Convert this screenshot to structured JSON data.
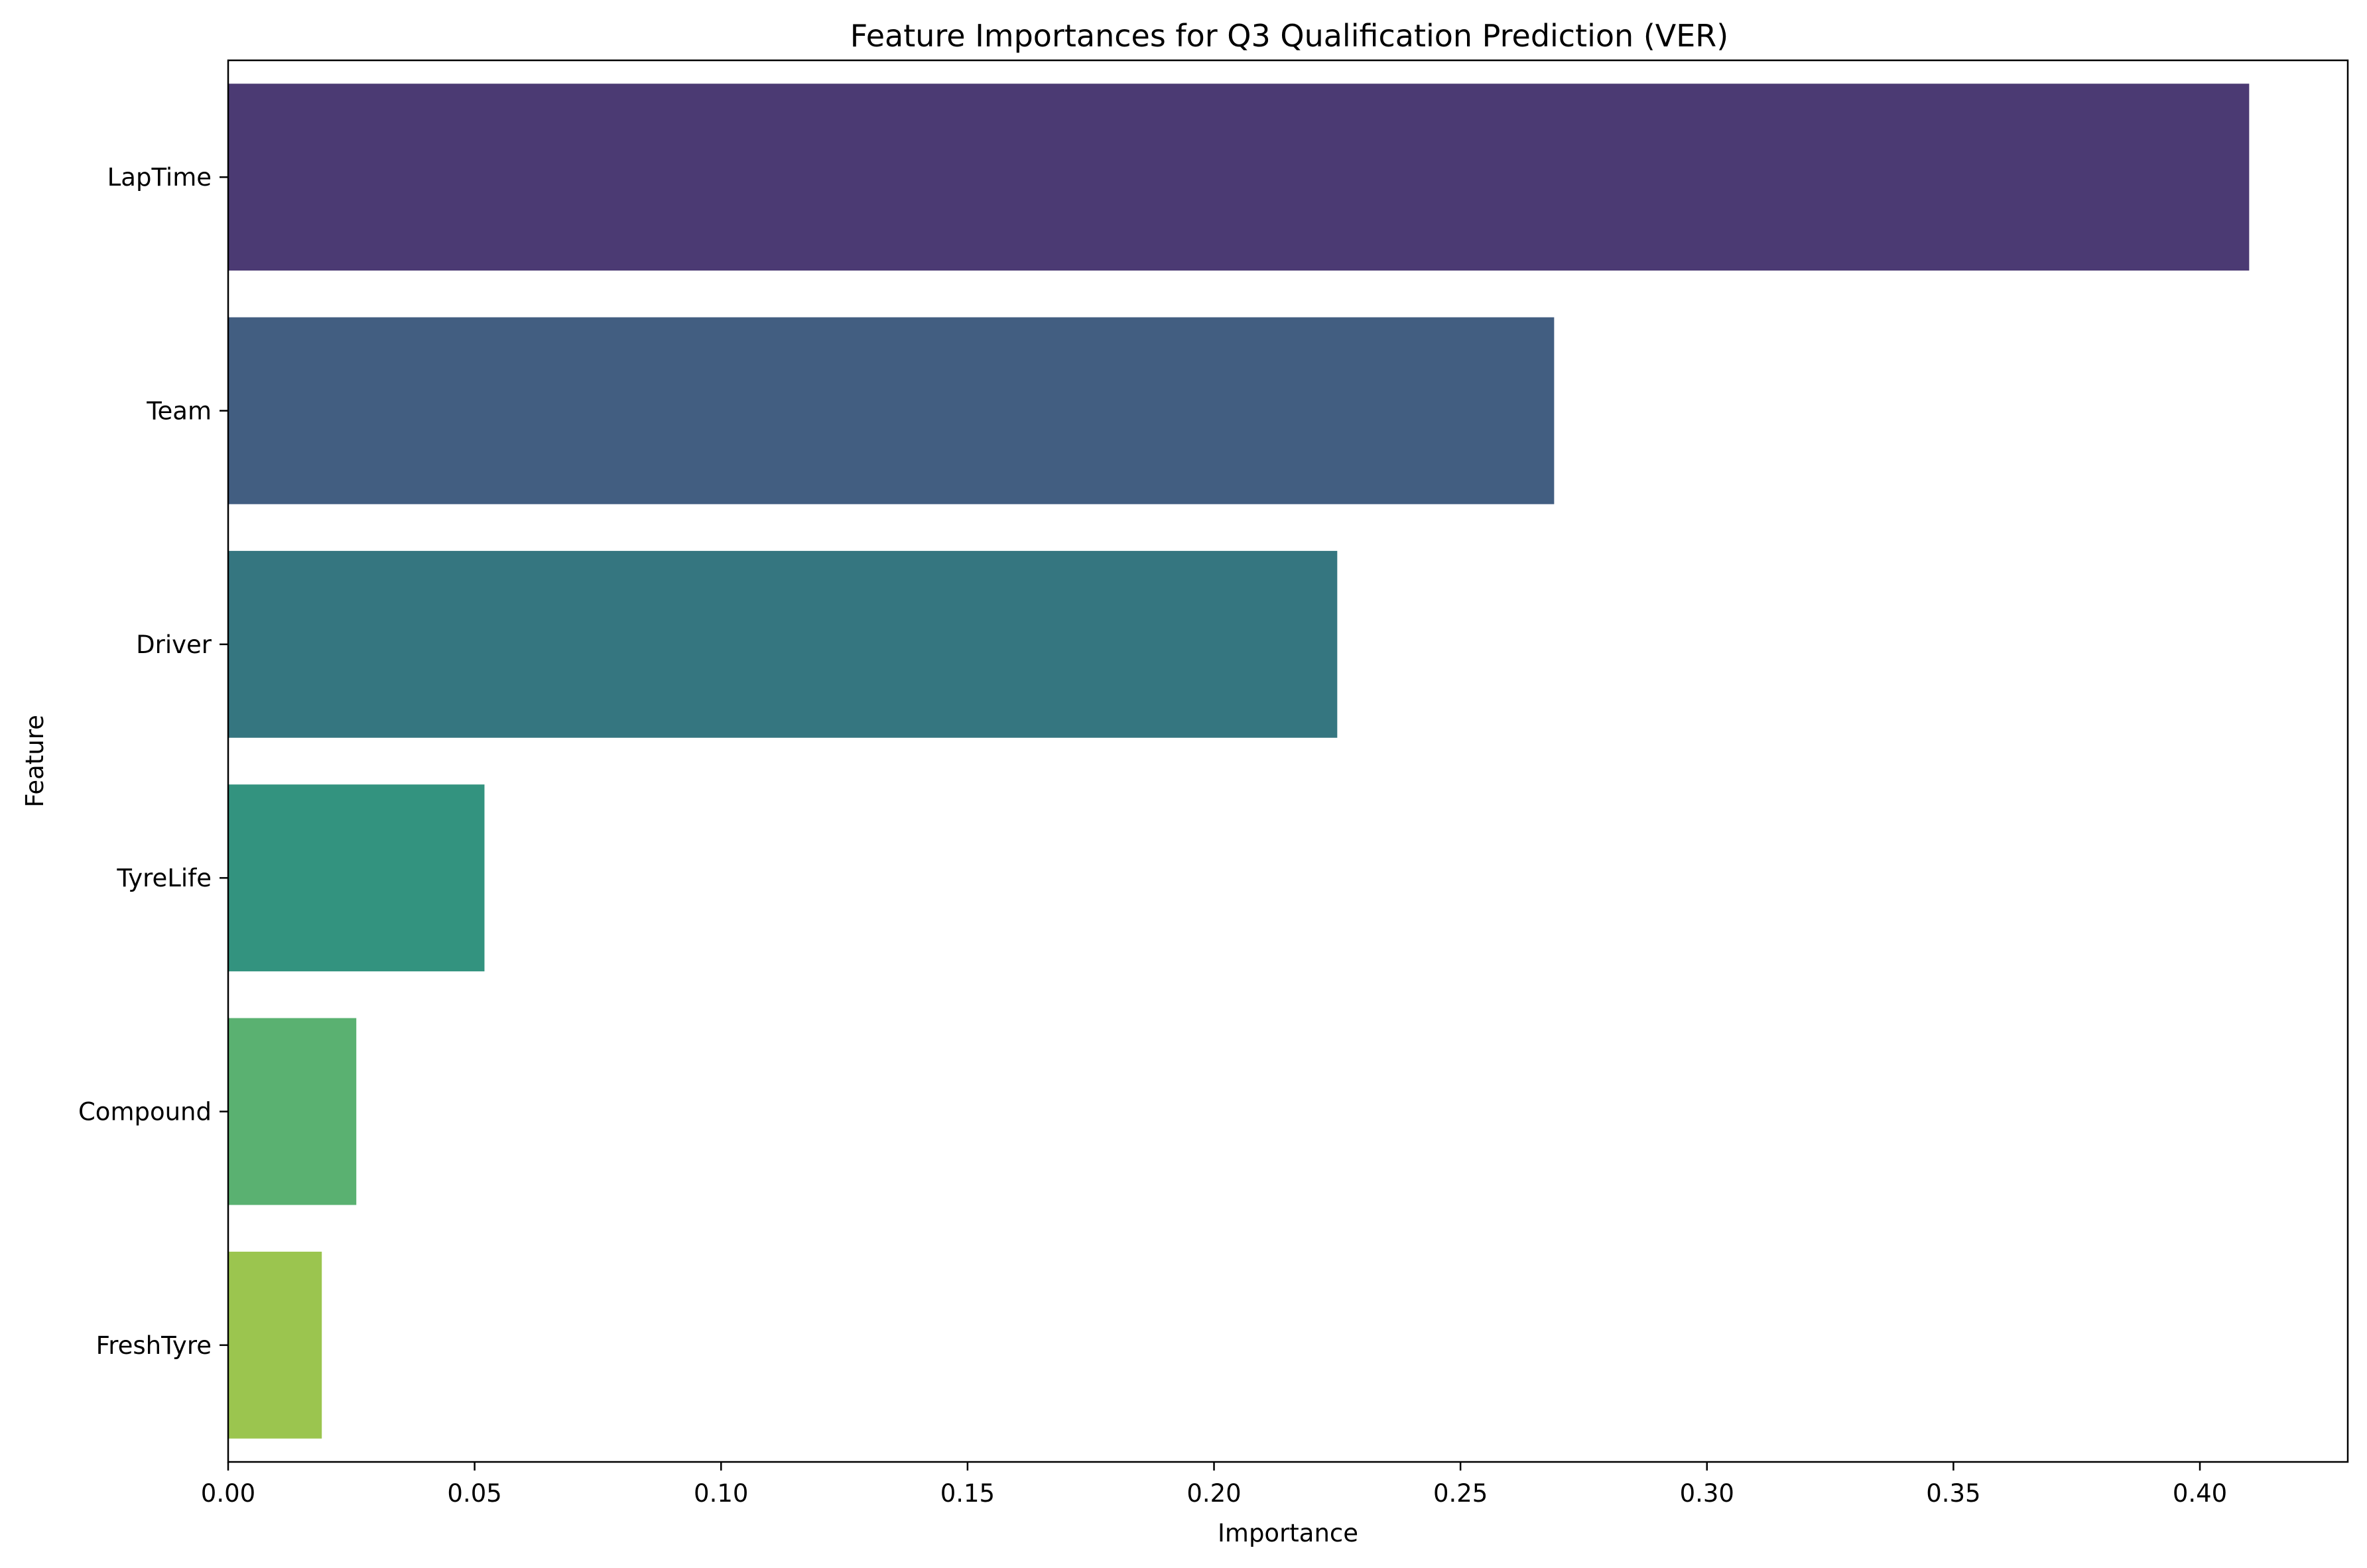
{
  "chart_data": {
    "type": "bar",
    "orientation": "horizontal",
    "title": "Feature Importances for Q3 Qualification Prediction (VER)",
    "xlabel": "Importance",
    "ylabel": "Feature",
    "categories": [
      "LapTime",
      "Team",
      "Driver",
      "TyreLife",
      "Compound",
      "FreshTyre"
    ],
    "values": [
      0.41,
      0.269,
      0.225,
      0.052,
      0.026,
      0.019
    ],
    "colors": [
      "#4b3a73",
      "#425e81",
      "#357680",
      "#33937f",
      "#5ab171",
      "#9bc54f"
    ],
    "xlim": [
      0.0,
      0.43
    ],
    "xticks": [
      0.0,
      0.05,
      0.1,
      0.15,
      0.2,
      0.25,
      0.3,
      0.35,
      0.4
    ],
    "xtick_labels": [
      "0.00",
      "0.05",
      "0.10",
      "0.15",
      "0.20",
      "0.25",
      "0.30",
      "0.35",
      "0.40"
    ],
    "grid": false,
    "legend": "none"
  }
}
